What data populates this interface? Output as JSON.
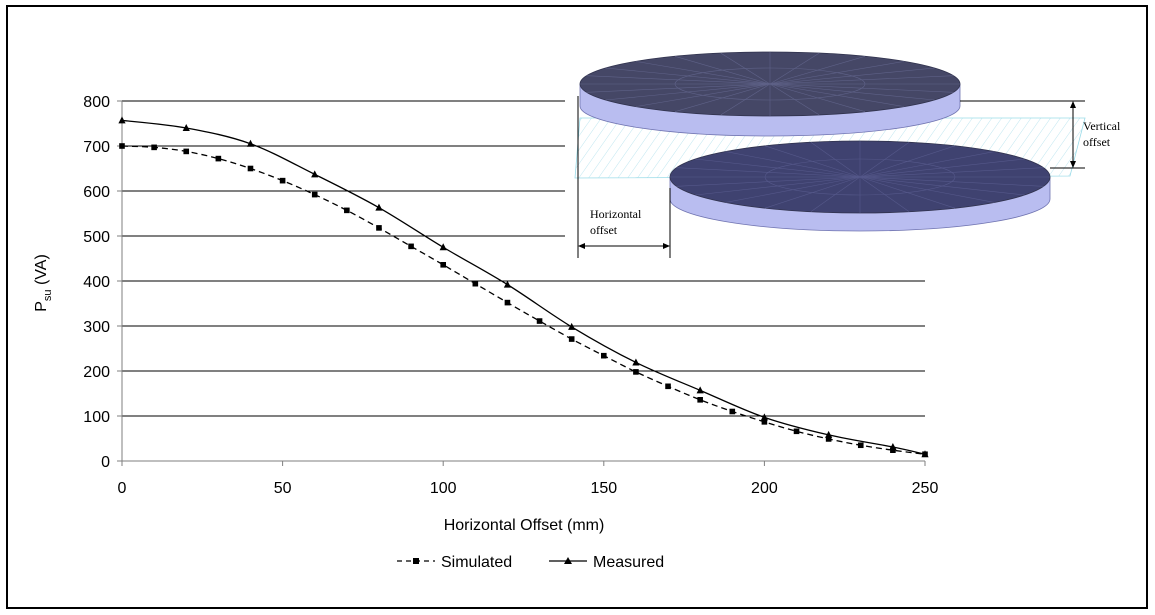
{
  "chart_data": {
    "type": "line",
    "xlabel": "Horizontal Offset (mm)",
    "ylabel_main": "P",
    "ylabel_sub": "su",
    "ylabel_unit": " (VA)",
    "xlim": [
      0,
      250
    ],
    "ylim": [
      0,
      800
    ],
    "x_ticks": [
      0,
      50,
      100,
      150,
      200,
      250
    ],
    "y_ticks": [
      0,
      100,
      200,
      300,
      400,
      500,
      600,
      700,
      800
    ],
    "grid": "horizontal",
    "legend_position": "bottom",
    "series": [
      {
        "name": "Simulated",
        "style": "dashed",
        "marker": "square",
        "color": "#000000",
        "x": [
          0,
          10,
          20,
          30,
          40,
          50,
          60,
          70,
          80,
          90,
          100,
          110,
          120,
          130,
          140,
          150,
          160,
          170,
          180,
          190,
          200,
          210,
          220,
          230,
          240,
          250
        ],
        "y": [
          700,
          697,
          688,
          672,
          650,
          623,
          592,
          557,
          518,
          477,
          436,
          394,
          352,
          311,
          271,
          234,
          198,
          166,
          136,
          110,
          87,
          66,
          49,
          35,
          24,
          15
        ]
      },
      {
        "name": "Measured",
        "style": "solid",
        "marker": "triangle",
        "color": "#000000",
        "x": [
          0,
          20,
          40,
          60,
          80,
          100,
          120,
          140,
          160,
          180,
          200,
          220,
          240,
          250
        ],
        "y": [
          757,
          740,
          705,
          637,
          563,
          475,
          392,
          298,
          219,
          157,
          97,
          58,
          31,
          15
        ]
      }
    ]
  },
  "inset": {
    "vertical_label_line1": "Vertical",
    "vertical_label_line2": "offset",
    "horizontal_label_line1": "Horizontal",
    "horizontal_label_line2": "offset",
    "disk_top_color": "#454766",
    "disk_side_color": "#b9bdf0",
    "disk_edge_color": "#9a9fe0"
  }
}
